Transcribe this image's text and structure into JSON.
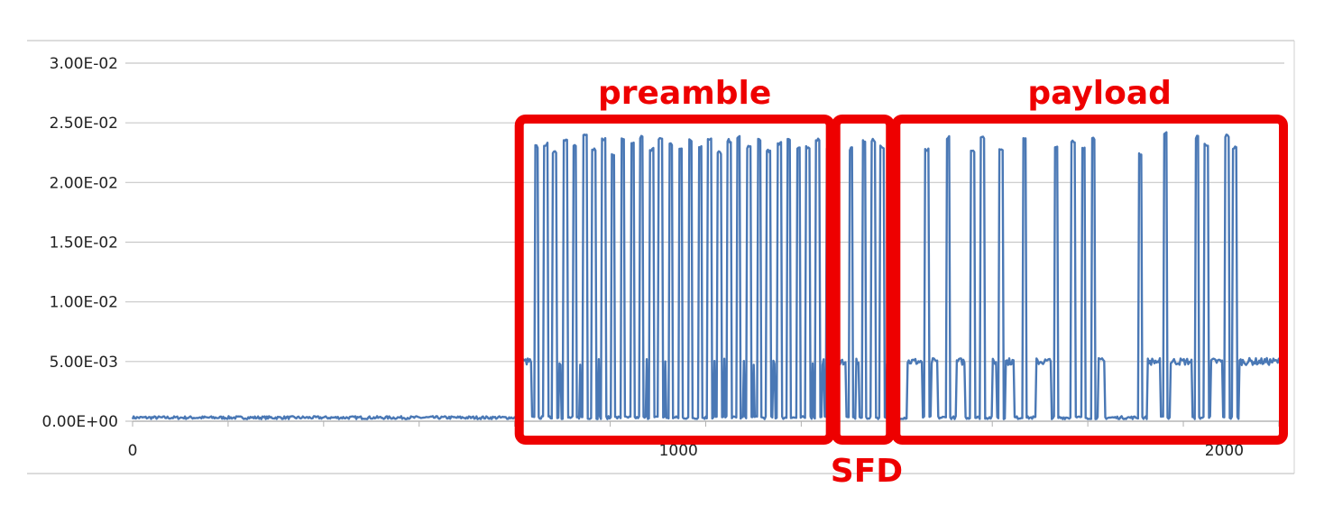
{
  "chart_data": {
    "type": "line",
    "title": "",
    "xlabel": "",
    "ylabel": "",
    "xlim": [
      0,
      2110
    ],
    "ylim": [
      0,
      0.03
    ],
    "y_ticks": [
      "0.00E+00",
      "5.00E-03",
      "1.00E-02",
      "1.50E-02",
      "2.00E-02",
      "2.50E-02",
      "3.00E-02"
    ],
    "x_ticks": [
      "0",
      "1000",
      "2000"
    ],
    "grid": "horizontal",
    "line_color": "#4a78b5",
    "levels": {
      "idle": 0.0003,
      "between_pulses": 0.005,
      "peak": 0.0233
    },
    "pulses_x": [
      740,
      757,
      773,
      793,
      810,
      829,
      845,
      863,
      880,
      898,
      916,
      932,
      951,
      967,
      986,
      1004,
      1022,
      1040,
      1057,
      1075,
      1093,
      1110,
      1129,
      1148,
      1165,
      1185,
      1202,
      1220,
      1237,
      1255,
      1275,
      1316,
      1340,
      1357,
      1373,
      1455,
      1494,
      1539,
      1557,
      1591,
      1634,
      1692,
      1723,
      1742,
      1760,
      1846,
      1892,
      1950,
      1967,
      2005,
      2019
    ],
    "pulse_peaks": [
      0.023,
      0.0232,
      0.0226,
      0.0235,
      0.023,
      0.024,
      0.0228,
      0.0236,
      0.0224,
      0.0237,
      0.0232,
      0.0238,
      0.0228,
      0.0237,
      0.0232,
      0.0228,
      0.0235,
      0.023,
      0.0237,
      0.0225,
      0.0235,
      0.0238,
      0.023,
      0.0236,
      0.0226,
      0.0233,
      0.0237,
      0.0228,
      0.023,
      0.0236,
      0.0227,
      0.0228,
      0.0234,
      0.0235,
      0.023,
      0.0227,
      0.0238,
      0.0227,
      0.0238,
      0.0228,
      0.0238,
      0.0229,
      0.0235,
      0.0228,
      0.0237,
      0.0224,
      0.0242,
      0.0238,
      0.0232,
      0.0239,
      0.0229
    ],
    "elevated_segments": [
      [
        1420,
        1475
      ],
      [
        1510,
        1525
      ],
      [
        1575,
        1615
      ],
      [
        1655,
        1700
      ],
      [
        1760,
        1780
      ],
      [
        1860,
        2110
      ]
    ],
    "annotations": [
      {
        "label": "preamble",
        "x_start": 710,
        "x_end": 1280
      },
      {
        "label": "SFD",
        "x_start": 1290,
        "x_end": 1390
      },
      {
        "label": "payload",
        "x_start": 1400,
        "x_end": 2110
      }
    ]
  }
}
